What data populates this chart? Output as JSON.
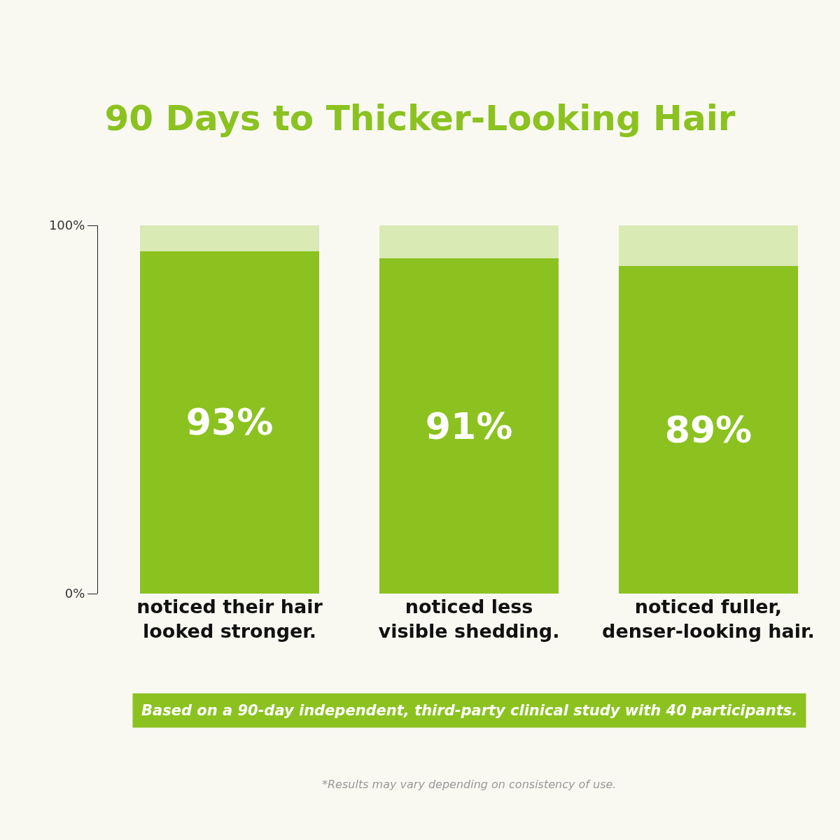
{
  "chart_data": {
    "type": "bar",
    "title": "90 Days to Thicker-Looking Hair",
    "categories": [
      "noticed their hair\nlooked stronger.",
      "noticed less\nvisible shedding.",
      "noticed fuller,\ndenser-looking hair."
    ],
    "stacked": true,
    "series": [
      {
        "color": "#8bc220",
        "values": [
          93,
          91,
          89
        ],
        "value_labels": [
          "93%",
          "91%",
          "89%"
        ]
      },
      {
        "color": "#d9eab5",
        "values": [
          7,
          9,
          11
        ]
      }
    ],
    "ylim": [
      0,
      100
    ],
    "yticks": [
      {
        "value": 0,
        "label": "0%"
      },
      {
        "value": 100,
        "label": "100%"
      }
    ],
    "annotations": [
      "Based on a 90-day independent, third-party clinical study with 40 participants.",
      "*Results may vary depending on consistency of use."
    ]
  }
}
